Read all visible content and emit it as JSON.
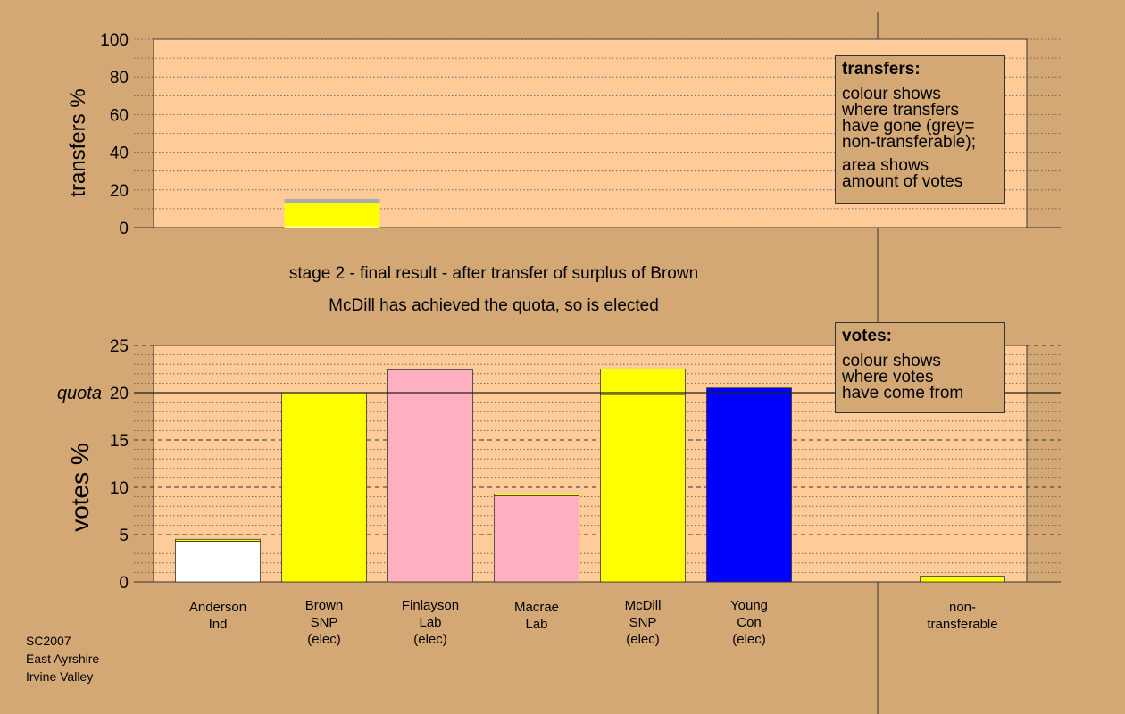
{
  "captions": {
    "stage": "stage 2 - final result - after transfer of surplus of Brown",
    "status": "McDill has achieved the quota, so is elected"
  },
  "source": {
    "line1": "SC2007",
    "line2": "East Ayrshire",
    "line3": "Irvine Valley"
  },
  "legend_transfers": {
    "title": "transfers:",
    "lines": [
      "colour shows",
      "where transfers",
      "have gone (grey=",
      "non-transferable);"
    ],
    "lines2": [
      "area shows",
      "amount of votes"
    ]
  },
  "legend_votes": {
    "title": "votes:",
    "lines": [
      "colour shows",
      "where votes",
      "have come from"
    ]
  },
  "colors": {
    "background": "#D4A874",
    "plot_area": "#FFCC99",
    "independent": "#FFFFFF",
    "snp": "#FFFF00",
    "labour": "#FFB0C0",
    "conservative": "#0000FF",
    "non_transferable": "#AAAAAA"
  },
  "chart_data": [
    {
      "type": "bar",
      "name": "transfers",
      "ylabel": "transfers %",
      "ylim": [
        0,
        100
      ],
      "yticks": [
        0,
        20,
        40,
        60,
        80,
        100
      ],
      "grid": "dotted every 10",
      "bars": [
        {
          "candidate_index": 1,
          "segments": [
            {
              "party": "snp",
              "color": "#FFFF00",
              "value": 13.2
            },
            {
              "party": "non-transferable",
              "color": "#AAAAAA",
              "value": 2.0
            }
          ]
        }
      ]
    },
    {
      "type": "bar",
      "name": "votes",
      "ylabel": "votes %",
      "ylim": [
        0,
        25
      ],
      "yticks": [
        0,
        5,
        10,
        15,
        20,
        25
      ],
      "quota": 20,
      "quota_label": "quota",
      "grid": "dashed every 5, dotted every 1",
      "candidates": [
        {
          "name": "Anderson",
          "party": "Ind",
          "elected": "",
          "segments": [
            {
              "color": "#FFFFFF",
              "value": 4.3
            },
            {
              "color": "#FFFF00",
              "value": 0.2
            }
          ]
        },
        {
          "name": "Brown",
          "party": "SNP",
          "elected": "(elec)",
          "segments": [
            {
              "color": "#FFFF00",
              "value": 20.0
            }
          ]
        },
        {
          "name": "Finlayson",
          "party": "Lab",
          "elected": "(elec)",
          "segments": [
            {
              "color": "#FFB0C0",
              "value": 22.4
            }
          ]
        },
        {
          "name": "Macrae",
          "party": "Lab",
          "elected": "",
          "segments": [
            {
              "color": "#FFB0C0",
              "value": 9.1
            },
            {
              "color": "#FFFF00",
              "value": 0.2
            }
          ]
        },
        {
          "name": "McDill",
          "party": "SNP",
          "elected": "(elec)",
          "segments": [
            {
              "color": "#FFFF00",
              "value": 19.8
            },
            {
              "color": "#FFFF00",
              "value": 2.7
            }
          ]
        },
        {
          "name": "Young",
          "party": "Con",
          "elected": "(elec)",
          "segments": [
            {
              "color": "#0000FF",
              "value": 20.5
            }
          ]
        }
      ],
      "non_transferable": {
        "label1": "non-",
        "label2": "transferable",
        "color": "#FFFF00",
        "value": 0.6
      }
    }
  ]
}
